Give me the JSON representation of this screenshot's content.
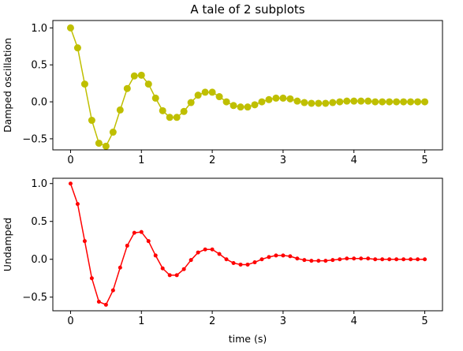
{
  "chart_data": [
    {
      "type": "line",
      "title": "A tale of 2 subplots",
      "xlabel": "",
      "ylabel": "Damped oscillation",
      "xlim": [
        -0.25,
        5.25
      ],
      "ylim": [
        -0.65,
        1.1
      ],
      "xticks": [
        0,
        1,
        2,
        3,
        4,
        5
      ],
      "yticks": [
        -0.5,
        0.0,
        0.5,
        1.0
      ],
      "xtick_labels": [
        "0",
        "1",
        "2",
        "3",
        "4",
        "5"
      ],
      "ytick_labels": [
        "−0.5",
        "0.0",
        "0.5",
        "1.0"
      ],
      "grid": false,
      "series": [
        {
          "color": "#bfbf00",
          "marker": "circle-large",
          "x": [
            0.0,
            0.1,
            0.2,
            0.3,
            0.4,
            0.5,
            0.6,
            0.7,
            0.8,
            0.9,
            1.0,
            1.1,
            1.2,
            1.3,
            1.4,
            1.5,
            1.6,
            1.7,
            1.8,
            1.9,
            2.0,
            2.1,
            2.2,
            2.3,
            2.4,
            2.5,
            2.6,
            2.7,
            2.8,
            2.9,
            3.0,
            3.1,
            3.2,
            3.3,
            3.4,
            3.5,
            3.6,
            3.7,
            3.8,
            3.9,
            4.0,
            4.1,
            4.2,
            4.3,
            4.4,
            4.5,
            4.6,
            4.7,
            4.8,
            4.9,
            5.0
          ],
          "y": [
            1.0,
            0.73,
            0.24,
            -0.25,
            -0.56,
            -0.6,
            -0.41,
            -0.11,
            0.18,
            0.35,
            0.36,
            0.24,
            0.05,
            -0.12,
            -0.21,
            -0.21,
            -0.13,
            -0.01,
            0.09,
            0.13,
            0.13,
            0.07,
            0.0,
            -0.05,
            -0.07,
            -0.07,
            -0.04,
            0.0,
            0.03,
            0.05,
            0.05,
            0.04,
            0.01,
            -0.01,
            -0.02,
            -0.02,
            -0.02,
            -0.01,
            0.0,
            0.01,
            0.01,
            0.01,
            0.01,
            0.0,
            -0.0,
            -0.0,
            -0.0,
            -0.0,
            -0.0,
            -0.0,
            0.0
          ]
        }
      ]
    },
    {
      "type": "line",
      "title": "",
      "xlabel": "time (s)",
      "ylabel": "Undamped",
      "xlim": [
        -0.25,
        5.25
      ],
      "ylim": [
        -0.68,
        1.07
      ],
      "xticks": [
        0,
        1,
        2,
        3,
        4,
        5
      ],
      "yticks": [
        -0.5,
        0.0,
        0.5,
        1.0
      ],
      "xtick_labels": [
        "0",
        "1",
        "2",
        "3",
        "4",
        "5"
      ],
      "ytick_labels": [
        "−0.5",
        "0.0",
        "0.5",
        "1.0"
      ],
      "grid": false,
      "series": [
        {
          "color": "#ff0000",
          "marker": "circle-small",
          "x": [
            0.0,
            0.1,
            0.2,
            0.3,
            0.4,
            0.5,
            0.6,
            0.7,
            0.8,
            0.9,
            1.0,
            1.1,
            1.2,
            1.3,
            1.4,
            1.5,
            1.6,
            1.7,
            1.8,
            1.9,
            2.0,
            2.1,
            2.2,
            2.3,
            2.4,
            2.5,
            2.6,
            2.7,
            2.8,
            2.9,
            3.0,
            3.1,
            3.2,
            3.3,
            3.4,
            3.5,
            3.6,
            3.7,
            3.8,
            3.9,
            4.0,
            4.1,
            4.2,
            4.3,
            4.4,
            4.5,
            4.6,
            4.7,
            4.8,
            4.9,
            5.0
          ],
          "y": [
            1.0,
            0.73,
            0.24,
            -0.25,
            -0.56,
            -0.6,
            -0.41,
            -0.11,
            0.18,
            0.35,
            0.36,
            0.24,
            0.05,
            -0.12,
            -0.21,
            -0.21,
            -0.13,
            -0.01,
            0.09,
            0.13,
            0.13,
            0.07,
            0.0,
            -0.05,
            -0.07,
            -0.07,
            -0.04,
            0.0,
            0.03,
            0.05,
            0.05,
            0.04,
            0.01,
            -0.01,
            -0.02,
            -0.02,
            -0.02,
            -0.01,
            0.0,
            0.01,
            0.01,
            0.01,
            0.01,
            0.0,
            -0.0,
            -0.0,
            -0.0,
            -0.0,
            -0.0,
            -0.0,
            0.0
          ]
        }
      ]
    }
  ]
}
